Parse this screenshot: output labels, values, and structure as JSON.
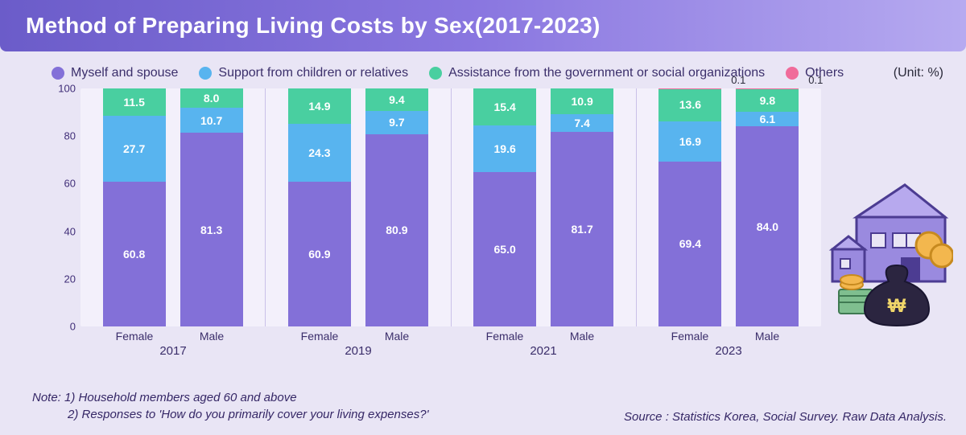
{
  "title": "Method of Preparing Living Costs by Sex(2017-2023)",
  "unit": "(Unit: %)",
  "legend": [
    {
      "label": "Myself and spouse",
      "color": "#8370d8"
    },
    {
      "label": "Support from children or relatives",
      "color": "#58b4ef"
    },
    {
      "label": "Assistance from the government or social organizations",
      "color": "#49cfa0"
    },
    {
      "label": "Others",
      "color": "#f06b9a"
    }
  ],
  "chart": {
    "type": "stacked-bar",
    "ylim": [
      0,
      100
    ],
    "yticks": [
      0,
      20,
      40,
      60,
      80,
      100
    ],
    "background_color": "#f3f0fb",
    "page_background": "#e9e5f5",
    "series_colors": {
      "myself": "#8370d8",
      "support": "#58b4ef",
      "assist": "#49cfa0",
      "others": "#f06b9a"
    },
    "years": [
      {
        "year": "2017",
        "bars": [
          {
            "sex": "Female",
            "myself": 60.8,
            "support": 27.7,
            "assist": 11.5,
            "others": 0
          },
          {
            "sex": "Male",
            "myself": 81.3,
            "support": 10.7,
            "assist": 8.0,
            "others": 0
          }
        ]
      },
      {
        "year": "2019",
        "bars": [
          {
            "sex": "Female",
            "myself": 60.9,
            "support": 24.3,
            "assist": 14.9,
            "others": 0
          },
          {
            "sex": "Male",
            "myself": 80.9,
            "support": 9.7,
            "assist": 9.4,
            "others": 0
          }
        ]
      },
      {
        "year": "2021",
        "bars": [
          {
            "sex": "Female",
            "myself": 65.0,
            "support": 19.6,
            "assist": 15.4,
            "others": 0
          },
          {
            "sex": "Male",
            "myself": 81.7,
            "support": 7.4,
            "assist": 10.9,
            "others": 0
          }
        ]
      },
      {
        "year": "2023",
        "bars": [
          {
            "sex": "Female",
            "myself": 69.4,
            "support": 16.9,
            "assist": 13.6,
            "others": 0.1
          },
          {
            "sex": "Male",
            "myself": 84.0,
            "support": 6.1,
            "assist": 9.8,
            "others": 0.1
          }
        ]
      }
    ]
  },
  "notes": {
    "n1": "Note: 1) Household members aged 60 and above",
    "n2": "2) Responses to 'How do you primarily cover your living expenses?'"
  },
  "source": "Source : Statistics Korea, Social Survey. Raw Data Analysis.",
  "label_fontsize": 14,
  "title_fontsize": 28
}
